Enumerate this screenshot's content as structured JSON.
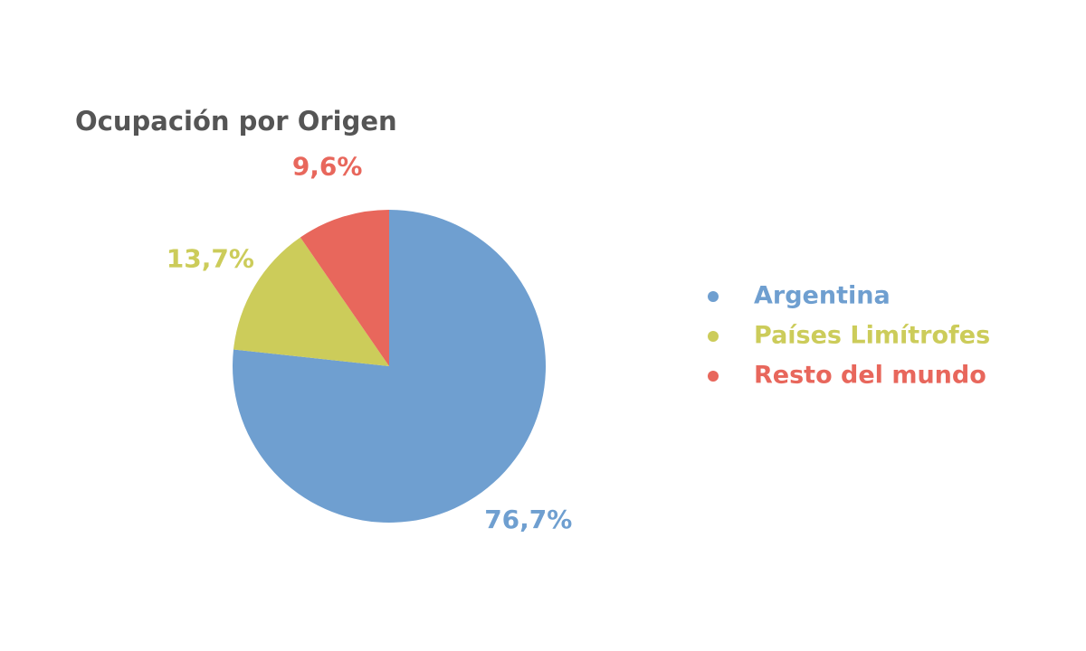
{
  "chart_data": {
    "type": "pie",
    "title": "Ocupación por Origen",
    "categories": [
      "Argentina",
      "Países Limítrofes",
      "Resto del mundo"
    ],
    "values": [
      76.7,
      13.7,
      9.6
    ],
    "value_labels": [
      "76,7%",
      "13,7%",
      "9,6%"
    ],
    "colors": [
      "#6f9fd0",
      "#cccc5a",
      "#e8675c"
    ]
  }
}
